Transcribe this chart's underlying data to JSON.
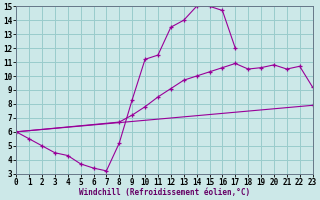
{
  "bg_color": "#cce8e8",
  "line_color": "#990099",
  "grid_color": "#99cccc",
  "xlabel": "Windchill (Refroidissement éolien,°C)",
  "xmin": 0,
  "xmax": 23,
  "ymin": 3,
  "ymax": 15,
  "tick_fontsize": 5.5,
  "xlabel_fontsize": 5.5,
  "series": [
    {
      "x": [
        0,
        1,
        2,
        3,
        4,
        5,
        6,
        7,
        8,
        9,
        10,
        11,
        12,
        13,
        14,
        15,
        16,
        17
      ],
      "y": [
        6.0,
        5.5,
        5.0,
        4.5,
        4.3,
        3.7,
        3.4,
        3.2,
        5.2,
        8.3,
        11.2,
        11.5,
        13.5,
        14.0,
        15.0,
        15.0,
        14.7,
        12.0
      ]
    },
    {
      "x": [
        0,
        8,
        9,
        10,
        11,
        12,
        13,
        14,
        15,
        16,
        17,
        18,
        19,
        20,
        21,
        22,
        23
      ],
      "y": [
        6.0,
        6.7,
        7.2,
        7.8,
        8.5,
        9.1,
        9.7,
        10.0,
        10.3,
        10.6,
        10.9,
        10.5,
        10.6,
        10.8,
        10.5,
        10.7,
        9.2
      ]
    },
    {
      "x": [
        0,
        23
      ],
      "y": [
        6.0,
        7.9
      ]
    }
  ]
}
